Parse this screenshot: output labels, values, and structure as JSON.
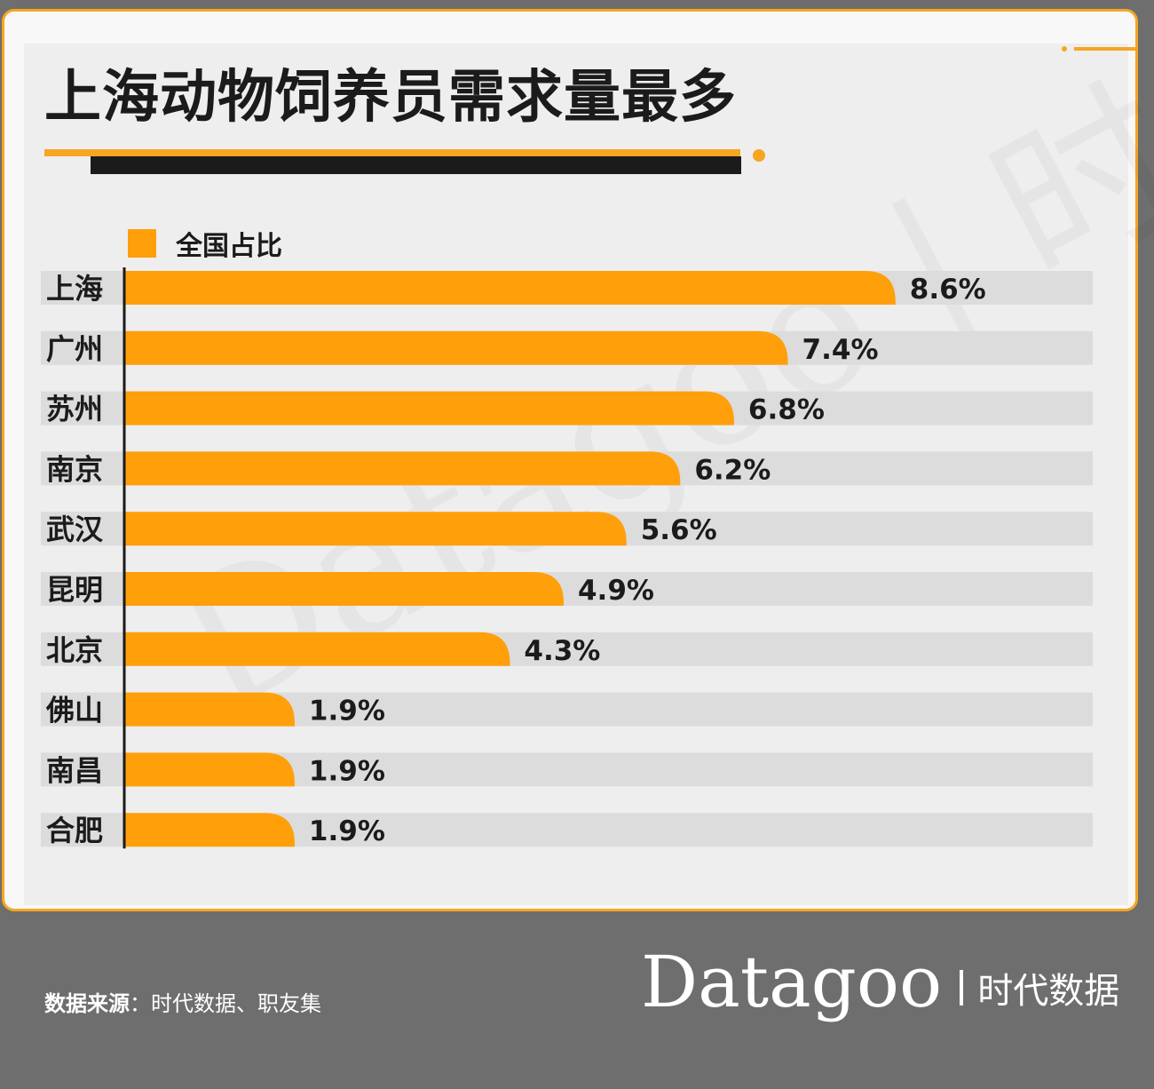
{
  "title": "上海动物饲养员需求量最多",
  "footer": {
    "source_label": "数据来源",
    "source_text": "时代数据、职友集",
    "brand_logo": "Datagoo",
    "brand_sub": "时代数据"
  },
  "colors": {
    "bar": "#ff9f0a",
    "track": "#dcdcdc",
    "accent": "#f5a623",
    "text": "#1b1b1b"
  },
  "chart_data": {
    "type": "bar",
    "orientation": "horizontal",
    "legend": {
      "entries": [
        "全国占比"
      ],
      "placement": "top-left"
    },
    "categories": [
      "上海",
      "广州",
      "苏州",
      "南京",
      "武汉",
      "昆明",
      "北京",
      "佛山",
      "南昌",
      "合肥"
    ],
    "series": [
      {
        "name": "全国占比",
        "values": [
          8.6,
          7.4,
          6.8,
          6.2,
          5.6,
          4.9,
          4.3,
          1.9,
          1.9,
          1.9
        ],
        "labels": [
          "8.6%",
          "7.4%",
          "6.8%",
          "6.2%",
          "5.6%",
          "4.9%",
          "4.3%",
          "1.9%",
          "1.9%",
          "1.9%"
        ]
      }
    ],
    "xlim": [
      0,
      10.8
    ],
    "grid": false
  }
}
